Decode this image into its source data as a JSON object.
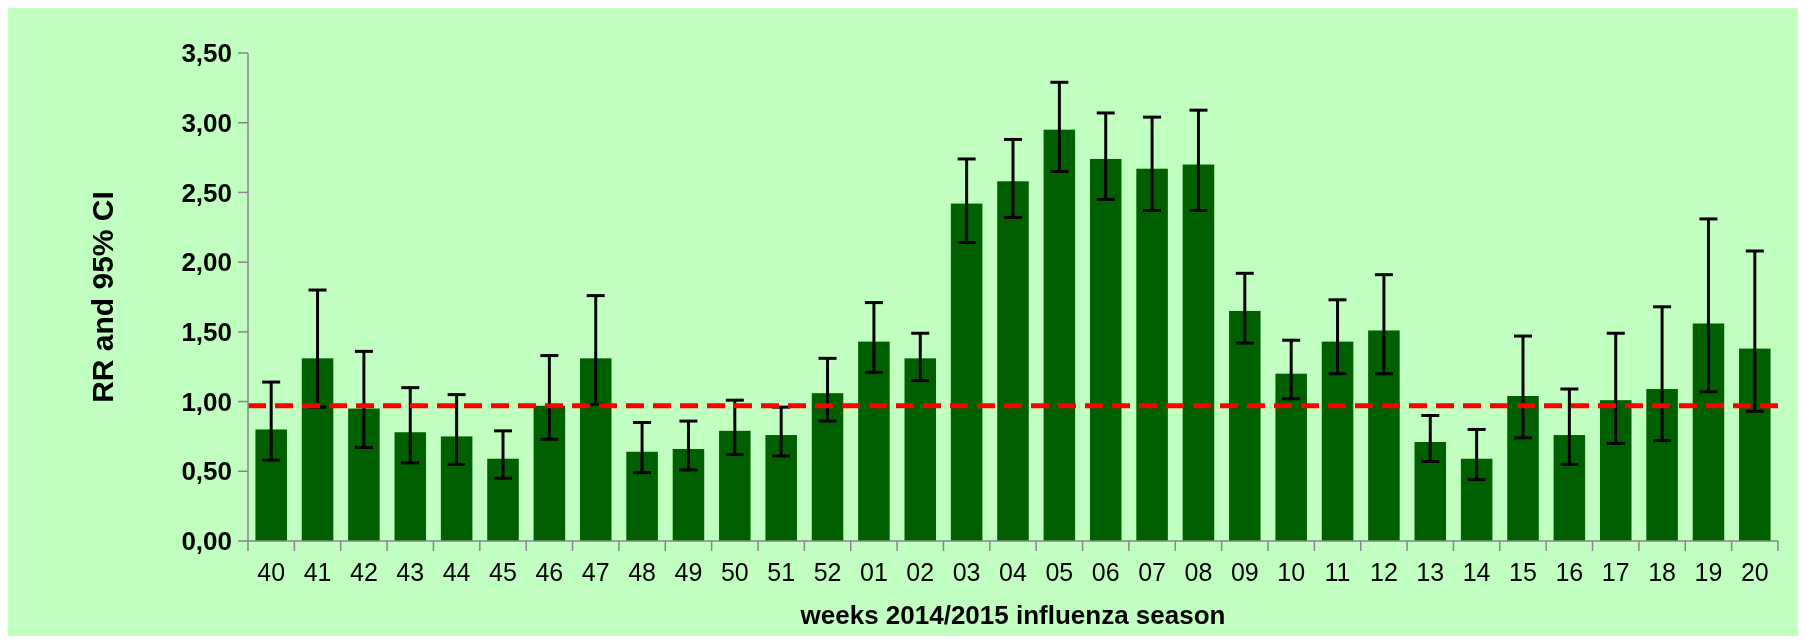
{
  "chart_data": {
    "type": "bar",
    "xlabel": "weeks 2014/2015 influenza season",
    "ylabel": "RR and 95% CI",
    "categories": [
      "40",
      "41",
      "42",
      "43",
      "44",
      "45",
      "46",
      "47",
      "48",
      "49",
      "50",
      "51",
      "52",
      "01",
      "02",
      "03",
      "04",
      "05",
      "06",
      "07",
      "08",
      "09",
      "10",
      "11",
      "12",
      "13",
      "14",
      "15",
      "16",
      "17",
      "18",
      "19",
      "20"
    ],
    "series": [
      {
        "color": "#006000",
        "values": [
          0.8,
          1.31,
          0.95,
          0.78,
          0.75,
          0.59,
          0.97,
          1.31,
          0.64,
          0.66,
          0.79,
          0.76,
          1.06,
          1.43,
          1.31,
          2.42,
          2.58,
          2.95,
          2.74,
          2.67,
          2.7,
          1.65,
          1.2,
          1.43,
          1.51,
          0.71,
          0.59,
          1.04,
          0.76,
          1.01,
          1.09,
          1.56,
          1.38
        ],
        "errors": [
          [
            0.58,
            1.14
          ],
          [
            0.96,
            1.8
          ],
          [
            0.67,
            1.36
          ],
          [
            0.56,
            1.1
          ],
          [
            0.55,
            1.05
          ],
          [
            0.45,
            0.79
          ],
          [
            0.73,
            1.33
          ],
          [
            0.98,
            1.76
          ],
          [
            0.49,
            0.85
          ],
          [
            0.51,
            0.86
          ],
          [
            0.62,
            1.01
          ],
          [
            0.61,
            0.96
          ],
          [
            0.86,
            1.31
          ],
          [
            1.21,
            1.71
          ],
          [
            1.15,
            1.49
          ],
          [
            2.14,
            2.74
          ],
          [
            2.32,
            2.88
          ],
          [
            2.65,
            3.29
          ],
          [
            2.45,
            3.07
          ],
          [
            2.37,
            3.04
          ],
          [
            2.37,
            3.09
          ],
          [
            1.42,
            1.92
          ],
          [
            1.02,
            1.44
          ],
          [
            1.2,
            1.73
          ],
          [
            1.2,
            1.91
          ],
          [
            0.57,
            0.9
          ],
          [
            0.44,
            0.8
          ],
          [
            0.74,
            1.47
          ],
          [
            0.55,
            1.09
          ],
          [
            0.7,
            1.49
          ],
          [
            0.72,
            1.68
          ],
          [
            1.07,
            2.31
          ],
          [
            0.93,
            2.08
          ]
        ]
      }
    ],
    "ylim": [
      0,
      3.5
    ],
    "yticks": [
      {
        "value": 0,
        "label": "0,00"
      },
      {
        "value": 0.5,
        "label": "0,50"
      },
      {
        "value": 1,
        "label": "1,00"
      },
      {
        "value": 1.5,
        "label": "1,50"
      },
      {
        "value": 2,
        "label": "2,00"
      },
      {
        "value": 2.5,
        "label": "2,50"
      },
      {
        "value": 3,
        "label": "3,00"
      },
      {
        "value": 3.5,
        "label": "3,50"
      }
    ],
    "ref_lines": [
      {
        "axis": "y",
        "value": 0.97,
        "color": "#ff0000",
        "line_style": "dashed"
      }
    ],
    "grid": false
  }
}
